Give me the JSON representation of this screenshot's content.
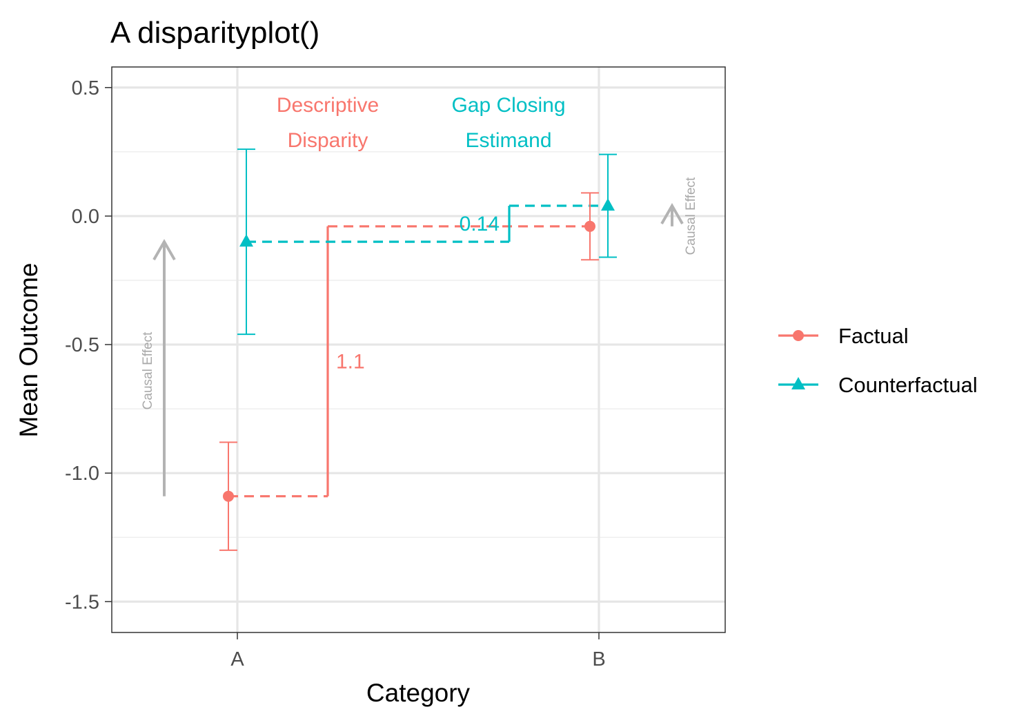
{
  "chart_data": {
    "type": "scatter",
    "title": "A disparityplot()",
    "xlabel": "Category",
    "ylabel": "Mean Outcome",
    "categories": [
      "A",
      "B"
    ],
    "ylim": [
      -1.62,
      0.58
    ],
    "yticks": [
      0.5,
      0.0,
      -0.5,
      -1.0,
      -1.5
    ],
    "ytick_labels": [
      "0.5",
      "0.0",
      "-0.5",
      "-1.0",
      "-1.5"
    ],
    "grid": true,
    "legend_position": "right",
    "colors": {
      "factual": "#F8766D",
      "counterfactual": "#00BFC4",
      "causal": "#b3b3b3"
    },
    "series": [
      {
        "name": "Factual",
        "color": "#F8766D",
        "marker": "circle",
        "points": [
          {
            "category": "A",
            "y": -1.09,
            "lower": -1.3,
            "upper": -0.88
          },
          {
            "category": "B",
            "y": -0.04,
            "lower": -0.17,
            "upper": 0.09
          }
        ]
      },
      {
        "name": "Counterfactual",
        "color": "#00BFC4",
        "marker": "triangle",
        "points": [
          {
            "category": "A",
            "y": -0.1,
            "lower": -0.46,
            "upper": 0.26
          },
          {
            "category": "B",
            "y": 0.04,
            "lower": -0.16,
            "upper": 0.24
          }
        ]
      }
    ],
    "annotations": {
      "descriptive_title": [
        "Descriptive",
        "Disparity"
      ],
      "descriptive_value": "1.1",
      "gap_title": [
        "Gap Closing",
        "Estimand"
      ],
      "gap_value": "0.14",
      "causal_label_a": "Causal Effect",
      "causal_label_b": "Causal Effect"
    }
  }
}
